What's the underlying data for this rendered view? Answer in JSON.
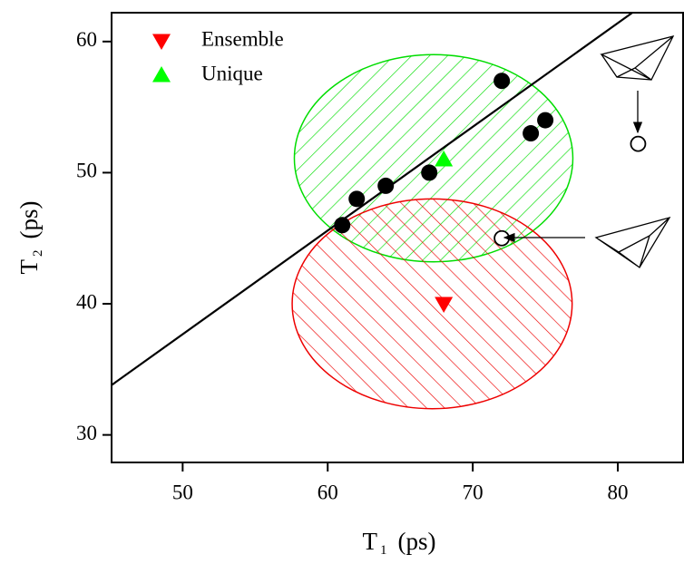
{
  "chart_data": {
    "type": "scatter",
    "xlim": [
      45.1,
      84.5
    ],
    "ylim": [
      27.9,
      62.2
    ],
    "xticks": [
      50,
      60,
      70,
      80
    ],
    "yticks": [
      30,
      40,
      50,
      60
    ],
    "x_label": [
      "T",
      "1",
      "(ps)"
    ],
    "y_label": [
      "T",
      "2",
      "(ps)"
    ],
    "regions": [
      {
        "color": "#00dd00",
        "center": [
          67.3,
          51.1
        ],
        "radii": [
          9.6,
          7.9
        ],
        "hatch": "forward"
      },
      {
        "color": "#ee0000",
        "center": [
          67.2,
          40.0
        ],
        "radii": [
          9.65,
          8.0
        ],
        "hatch": "backward"
      }
    ],
    "fit_line": {
      "color": "#000000",
      "x": [
        45.1,
        81.0
      ],
      "values": [
        33.8,
        62.2
      ]
    },
    "series": [
      {
        "name": "Ensemble",
        "color": "#ff0000",
        "marker": "triangle-down",
        "x": [
          68
        ],
        "values": [
          40
        ]
      },
      {
        "name": "Unique",
        "color": "#00ff00",
        "marker": "triangle-up",
        "x": [
          68
        ],
        "values": [
          51
        ]
      },
      {
        "color": "#000000",
        "marker": "circle",
        "x": [
          61,
          62,
          64,
          67,
          72,
          74,
          75
        ],
        "values": [
          46,
          48,
          49,
          50,
          57,
          53,
          54
        ]
      },
      {
        "color": "#000000",
        "marker": "open-circle",
        "x": [
          72,
          81.4
        ],
        "values": [
          45,
          52.2
        ]
      }
    ]
  }
}
